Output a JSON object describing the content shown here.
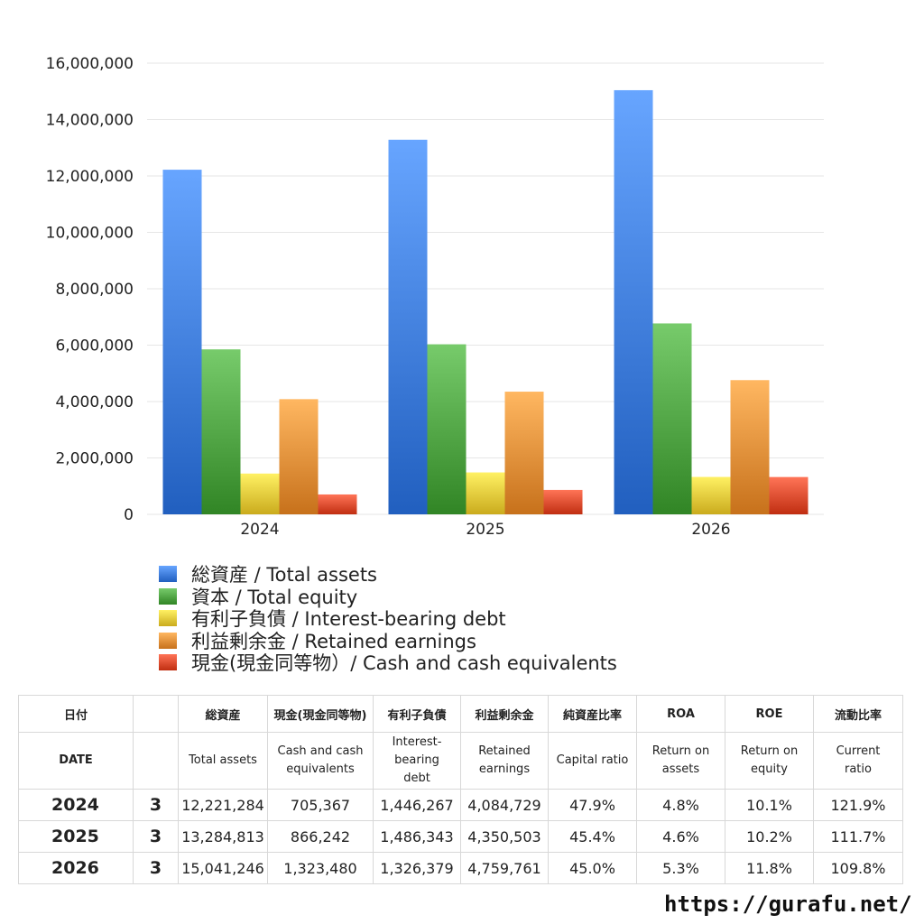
{
  "chart_data": {
    "type": "bar",
    "categories": [
      "2024",
      "2025",
      "2026"
    ],
    "series": [
      {
        "name": "総資産 / Total assets",
        "color": "#3a78d8",
        "values": [
          12221284,
          13284813,
          15041246
        ]
      },
      {
        "name": "資本 / Total equity",
        "color": "#4a9e3e",
        "values": [
          5850000,
          6030000,
          6770000
        ]
      },
      {
        "name": "有利子負債 / Interest-bearing debt",
        "color": "#e3c436",
        "values": [
          1446267,
          1486343,
          1326379
        ]
      },
      {
        "name": "利益剰余金 / Retained earnings",
        "color": "#e08a34",
        "values": [
          4084729,
          4350503,
          4759761
        ]
      },
      {
        "name": "現金(現金同等物）/  Cash and cash equivalents",
        "color": "#d9472a",
        "values": [
          705367,
          866242,
          1323480
        ]
      }
    ],
    "ylim": [
      0,
      16000000
    ],
    "yticks": [
      "0",
      "2,000,000",
      "4,000,000",
      "6,000,000",
      "8,000,000",
      "10,000,000",
      "12,000,000",
      "14,000,000",
      "16,000,000"
    ],
    "grid": true,
    "legend": "bottom"
  },
  "table": {
    "header_jp": [
      "日付",
      "",
      "総資産",
      "現金(現金同等物)",
      "有利子負債",
      "利益剰余金",
      "純資産比率",
      "ROA",
      "ROE",
      "流動比率"
    ],
    "header_en": [
      [
        "DATE"
      ],
      [
        ""
      ],
      [
        "Total assets"
      ],
      [
        "Cash and cash",
        "equivalents"
      ],
      [
        "Interest-",
        "bearing",
        "debt"
      ],
      [
        "Retained",
        "earnings"
      ],
      [
        "Capital ratio"
      ],
      [
        "Return on",
        "assets"
      ],
      [
        "Return on",
        "equity"
      ],
      [
        "Current",
        "ratio"
      ]
    ],
    "rows": [
      [
        "2024",
        "3",
        "12,221,284",
        "705,367",
        "1,446,267",
        "4,084,729",
        "47.9%",
        "4.8%",
        "10.1%",
        "121.9%"
      ],
      [
        "2025",
        "3",
        "13,284,813",
        "866,242",
        "1,486,343",
        "4,350,503",
        "45.4%",
        "4.6%",
        "10.2%",
        "111.7%"
      ],
      [
        "2026",
        "3",
        "15,041,246",
        "1,323,480",
        "1,326,379",
        "4,759,761",
        "45.0%",
        "5.3%",
        "11.8%",
        "109.8%"
      ]
    ]
  },
  "footer": {
    "url": "https://gurafu.net/"
  }
}
